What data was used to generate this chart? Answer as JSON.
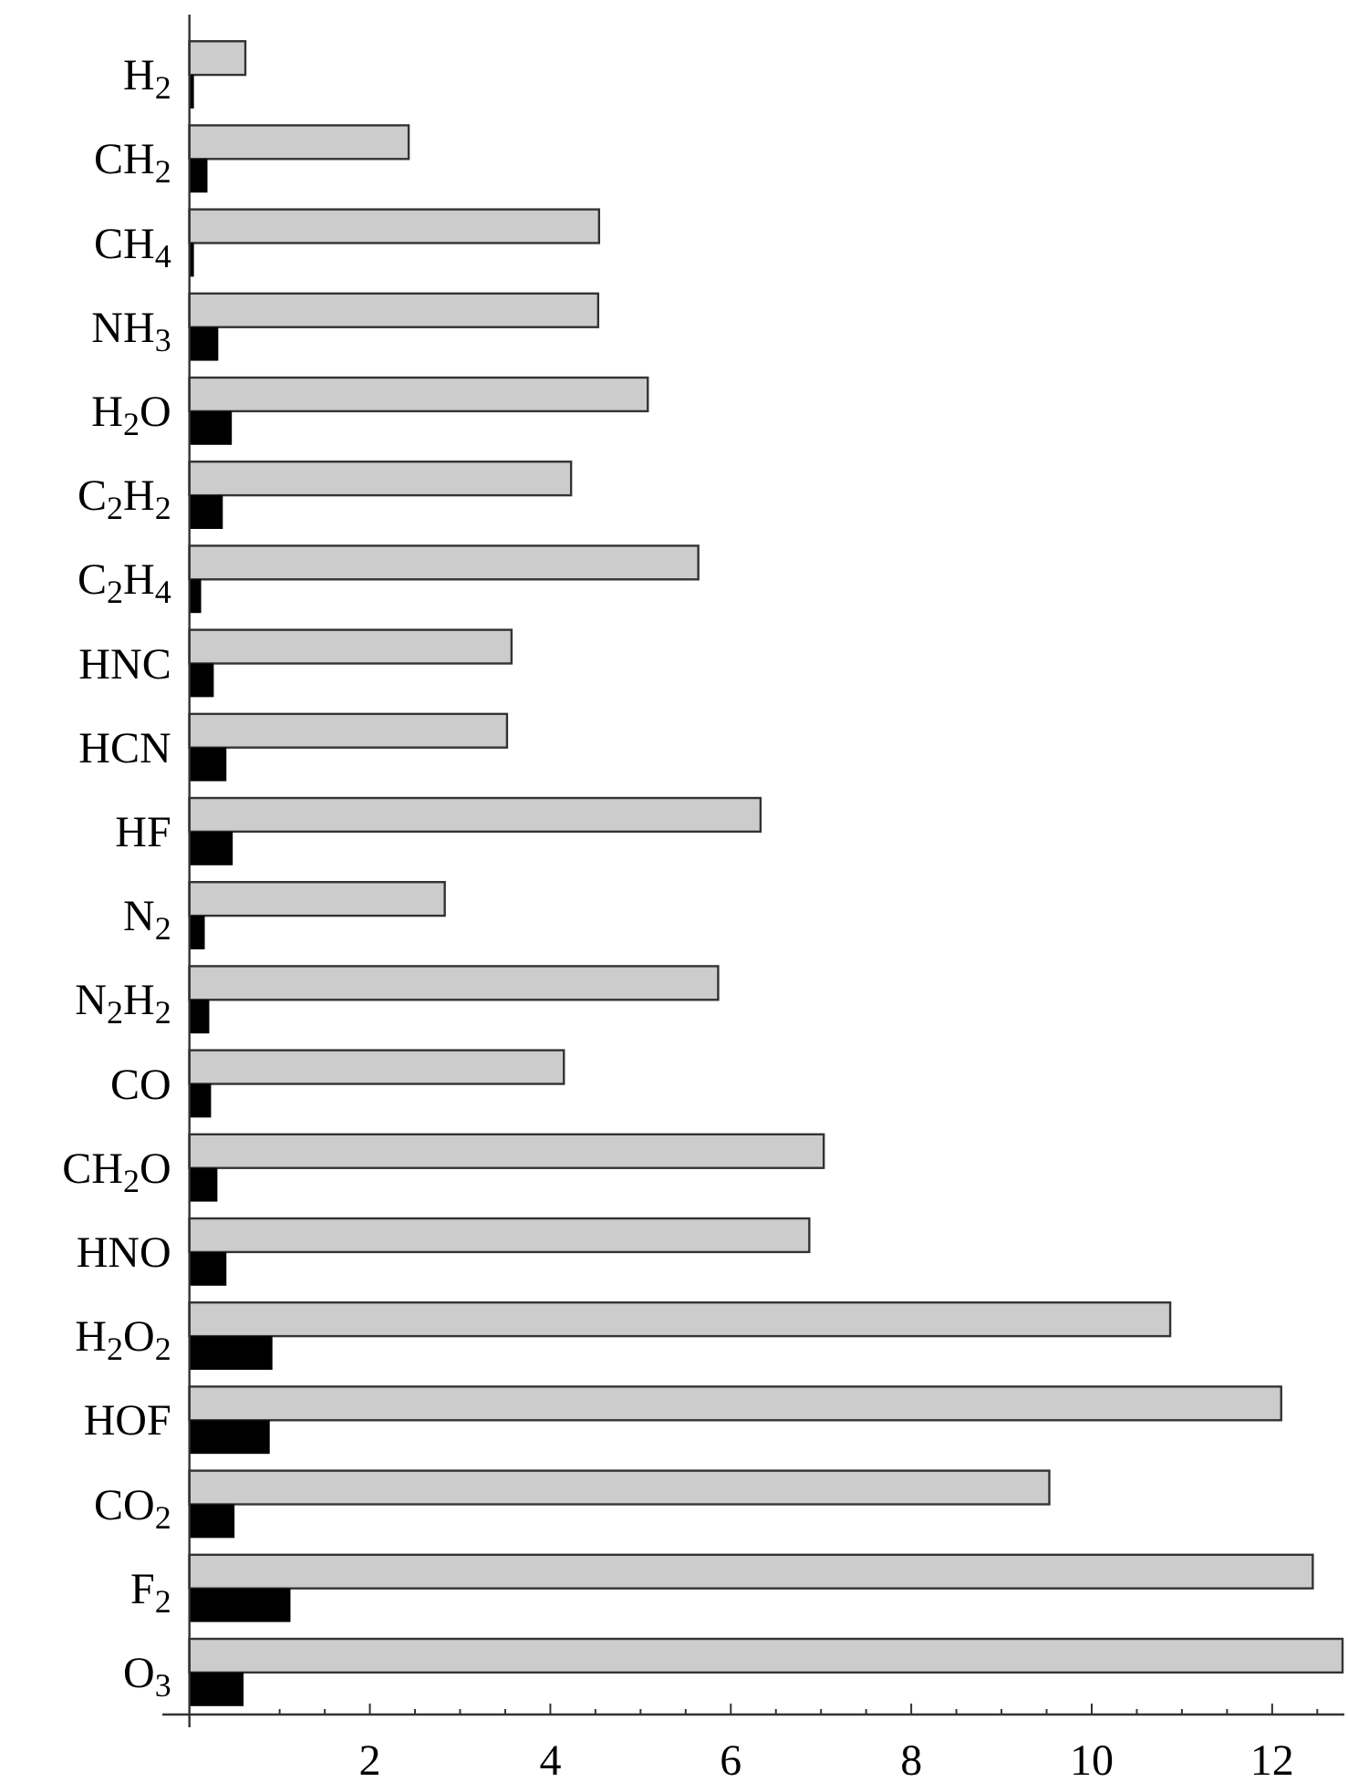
{
  "chart_data": {
    "type": "bar",
    "orientation": "horizontal",
    "categories": [
      "H$_{2}$",
      "CH$_{2}$",
      "CH$_{4}$",
      "NH$_{3}$",
      "H$_{2}$O",
      "C$_{2}$H$_{2}$",
      "C$_{2}$H$_{4}$",
      "HNC",
      "HCN",
      "HF",
      "N$_{2}$",
      "N$_{2}$H$_{2}$",
      "CO",
      "CH$_{2}$O",
      "HNO",
      "H$_{2}$O$_{2}$",
      "HOF",
      "CO$_{2}$",
      "F$_{2}$",
      "O$_{3}$"
    ],
    "series": [
      {
        "color": "#cccccc",
        "values": [
          0.62,
          2.43,
          4.54,
          4.53,
          5.08,
          4.23,
          5.64,
          3.57,
          3.52,
          6.33,
          2.83,
          5.86,
          4.15,
          7.03,
          6.87,
          10.87,
          12.1,
          9.53,
          12.45,
          12.78
        ]
      },
      {
        "color": "#000000",
        "values": [
          0.05,
          0.2,
          0.05,
          0.32,
          0.47,
          0.37,
          0.13,
          0.27,
          0.41,
          0.48,
          0.17,
          0.22,
          0.24,
          0.31,
          0.41,
          0.92,
          0.89,
          0.5,
          1.12,
          0.6
        ]
      }
    ],
    "xlim": [
      -0.3,
      12.8
    ],
    "xticks": [
      {
        "value": 1,
        "label": null
      },
      {
        "value": 1.5,
        "label": null
      },
      2,
      {
        "value": 2.5,
        "label": null
      },
      {
        "value": 3,
        "label": null
      },
      {
        "value": 3.5,
        "label": null
      },
      4,
      {
        "value": 4.5,
        "label": null
      },
      {
        "value": 5,
        "label": null
      },
      {
        "value": 5.5,
        "label": null
      },
      6,
      {
        "value": 6.5,
        "label": null
      },
      {
        "value": 7,
        "label": null
      },
      {
        "value": 7.5,
        "label": null
      },
      8,
      {
        "value": 8.5,
        "label": null
      },
      {
        "value": 9,
        "label": null
      },
      {
        "value": 9.5,
        "label": null
      },
      10,
      {
        "value": 10.5,
        "label": null
      },
      {
        "value": 11,
        "label": null
      },
      {
        "value": 11.5,
        "label": null
      },
      12,
      {
        "value": 12.5,
        "label": null
      }
    ],
    "grid": false
  }
}
